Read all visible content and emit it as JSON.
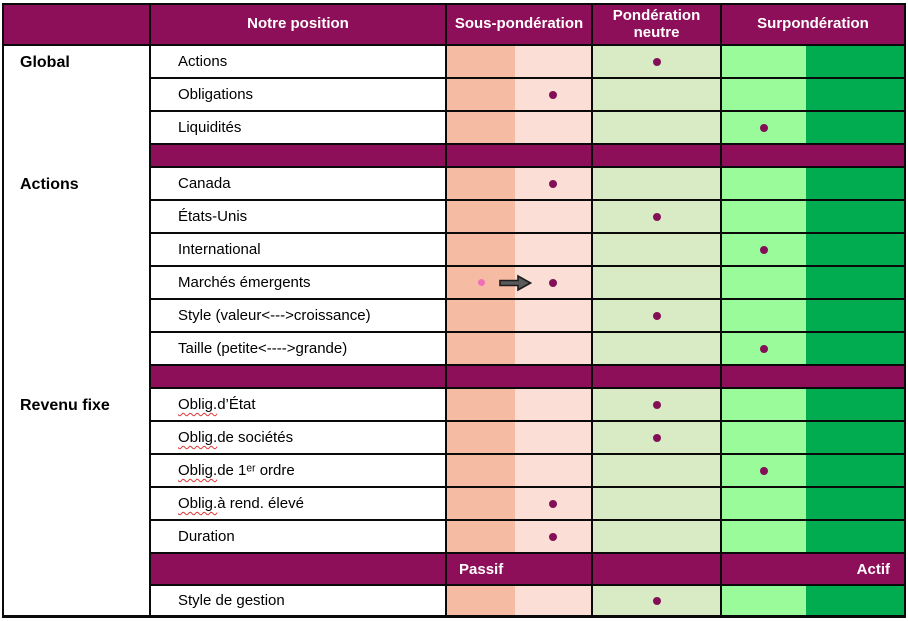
{
  "header": {
    "position_label": "Notre position",
    "underweight_label": "Sous-pondération",
    "neutral_label": "Pondération neutre",
    "overweight_label": "Surpondération"
  },
  "footer": {
    "passive_label": "Passif",
    "active_label": "Actif"
  },
  "scale_columns": [
    "underweight_strong",
    "underweight_light",
    "neutral",
    "overweight_light",
    "overweight_strong"
  ],
  "sections": [
    {
      "group": "Global",
      "rows": [
        {
          "label": "Actions",
          "position": "neutral"
        },
        {
          "label": "Obligations",
          "position": "underweight_light"
        },
        {
          "label": "Liquidités",
          "position": "overweight_light"
        }
      ]
    },
    {
      "group": "Actions",
      "rows": [
        {
          "label": "Canada",
          "position": "underweight_light"
        },
        {
          "label": "États-Unis",
          "position": "neutral"
        },
        {
          "label": "International",
          "position": "overweight_light"
        },
        {
          "label": "Marchés émergents",
          "position": "underweight_light",
          "previous_position": "underweight_strong",
          "change_arrow": true
        },
        {
          "label": "Style (valeur<--->croissance)",
          "position": "neutral"
        },
        {
          "label": "Taille (petite<---->grande)",
          "position": "overweight_light"
        }
      ]
    },
    {
      "group": "Revenu fixe",
      "rows": [
        {
          "label": "Oblig. d’État",
          "position": "neutral",
          "squiggle_prefix": "Oblig."
        },
        {
          "label": "Oblig. de sociétés",
          "position": "neutral",
          "squiggle_prefix": "Oblig."
        },
        {
          "label": "Oblig. de 1ᵉʳ ordre",
          "position": "overweight_light",
          "squiggle_prefix": "Oblig."
        },
        {
          "label": "Oblig. à rend. élevé",
          "position": "underweight_light",
          "squiggle_prefix": "Oblig."
        },
        {
          "label": "Duration",
          "position": "underweight_light"
        }
      ]
    }
  ],
  "management_row": {
    "label": "Style de gestion",
    "position": "neutral"
  },
  "colors": {
    "header_bg": "#8E0F59",
    "header_text": "#FFFFFF",
    "row_text": "#000000",
    "grid_line": "#0A0A0A",
    "underweight_strong_bg": "#F6BCA3",
    "underweight_light_bg": "#FBDED6",
    "neutral_bg": "#D9EBC4",
    "overweight_light_bg": "#99FB99",
    "overweight_strong_bg": "#00AC4F",
    "dot": "#831057",
    "previous_dot": "#F06FB9",
    "arrow_fill": "#595959",
    "arrow_outline": "#1C1C1C",
    "spellcheck_underline": "#E03434"
  },
  "chart_data": {
    "type": "table",
    "title": "Notre position",
    "column_headers": [
      "Sous-pondération",
      "Pondération neutre",
      "Surpondération"
    ],
    "position_scale": {
      "-2": "sous-pondération forte",
      "-1": "sous-pondération légère",
      "0": "pondération neutre",
      "1": "surpondération légère",
      "2": "surpondération forte"
    },
    "management_scale": [
      "Passif",
      "Actif"
    ],
    "rows": [
      {
        "section": "Global",
        "item": "Actions",
        "value": 0
      },
      {
        "section": "Global",
        "item": "Obligations",
        "value": -1
      },
      {
        "section": "Global",
        "item": "Liquidités",
        "value": 1
      },
      {
        "section": "Actions",
        "item": "Canada",
        "value": -1
      },
      {
        "section": "Actions",
        "item": "États-Unis",
        "value": 0
      },
      {
        "section": "Actions",
        "item": "International",
        "value": 1
      },
      {
        "section": "Actions",
        "item": "Marchés émergents",
        "value": -1,
        "previous_value": -2
      },
      {
        "section": "Actions",
        "item": "Style (valeur<--->croissance)",
        "value": 0
      },
      {
        "section": "Actions",
        "item": "Taille (petite<---->grande)",
        "value": 1
      },
      {
        "section": "Revenu fixe",
        "item": "Oblig. d’État",
        "value": 0
      },
      {
        "section": "Revenu fixe",
        "item": "Oblig. de sociétés",
        "value": 0
      },
      {
        "section": "Revenu fixe",
        "item": "Oblig. de 1ᵉʳ ordre",
        "value": 1
      },
      {
        "section": "Revenu fixe",
        "item": "Oblig. à rend. élevé",
        "value": -1
      },
      {
        "section": "Revenu fixe",
        "item": "Duration",
        "value": -1
      },
      {
        "section": "Style de gestion",
        "item": "Style de gestion",
        "value": 0
      }
    ]
  }
}
